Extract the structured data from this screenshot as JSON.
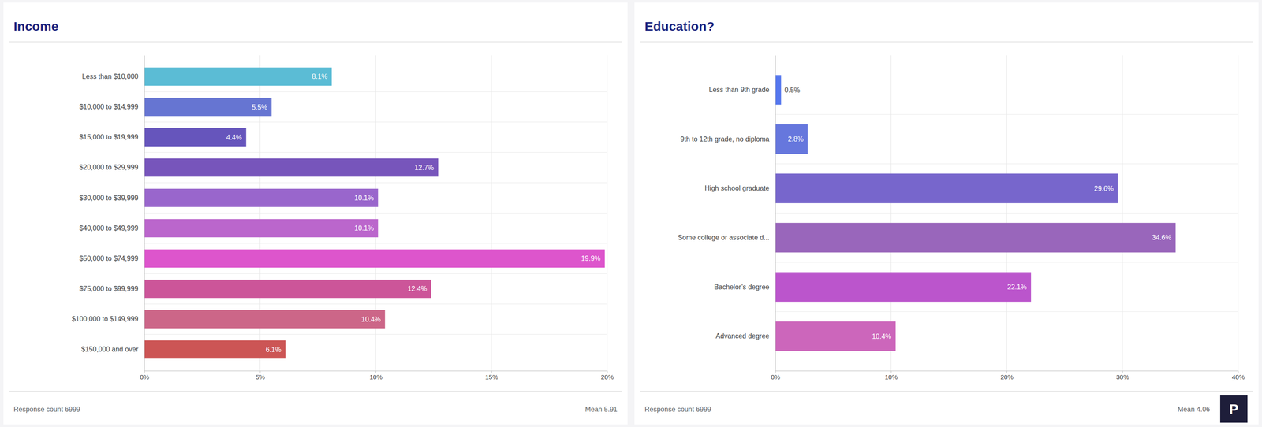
{
  "chart_data": [
    {
      "type": "bar",
      "orientation": "horizontal",
      "title": "Income",
      "categories": [
        "Less than $10,000",
        "$10,000 to $14,999",
        "$15,000 to $19,999",
        "$20,000 to $29,999",
        "$30,000 to $39,999",
        "$40,000 to $49,999",
        "$50,000 to $74,999",
        "$75,000 to $99,999",
        "$100,000 to $149,999",
        "$150,000 and over"
      ],
      "values": [
        8.1,
        5.5,
        4.4,
        12.7,
        10.1,
        10.1,
        19.9,
        12.4,
        10.4,
        6.1
      ],
      "value_labels": [
        "8.1%",
        "5.5%",
        "4.4%",
        "12.7%",
        "10.1%",
        "10.1%",
        "19.9%",
        "12.4%",
        "10.4%",
        "6.1%"
      ],
      "colors": [
        "#5bbcd5",
        "#6675d2",
        "#6655bc",
        "#7755bb",
        "#9966cc",
        "#bb66cc",
        "#dd55cc",
        "#cc5599",
        "#cc6688",
        "#cc5555"
      ],
      "xlim": [
        0,
        20
      ],
      "xticks": [
        {
          "value": 0,
          "label": "0%"
        },
        {
          "value": 5,
          "label": "5%"
        },
        {
          "value": 10,
          "label": "10%"
        },
        {
          "value": 15,
          "label": "15%"
        },
        {
          "value": 20,
          "label": "20%"
        }
      ],
      "grid": true,
      "data_labels": true,
      "annotations": [
        "Response count 6999",
        "Mean 5.91"
      ]
    },
    {
      "type": "bar",
      "orientation": "horizontal",
      "title": "Education?",
      "categories": [
        "Less than 9th grade",
        "9th to 12th grade, no diploma",
        "High school graduate",
        "Some college or associate d...",
        "Bachelor’s degree",
        "Advanced degree"
      ],
      "values": [
        0.5,
        2.8,
        29.6,
        34.6,
        22.1,
        10.4
      ],
      "value_labels": [
        "0.5%",
        "2.8%",
        "29.6%",
        "34.6%",
        "22.1%",
        "10.4%"
      ],
      "colors": [
        "#5577ee",
        "#6677dd",
        "#7766cc",
        "#9966bb",
        "#bb55cc",
        "#cc66bb"
      ],
      "xlim": [
        0,
        40
      ],
      "xticks": [
        {
          "value": 0,
          "label": "0%"
        },
        {
          "value": 10,
          "label": "10%"
        },
        {
          "value": 20,
          "label": "20%"
        },
        {
          "value": 30,
          "label": "30%"
        },
        {
          "value": 40,
          "label": "40%"
        }
      ],
      "grid": true,
      "data_labels": true,
      "annotations": [
        "Response count 6999",
        "Mean 4.06",
        "P"
      ]
    }
  ]
}
